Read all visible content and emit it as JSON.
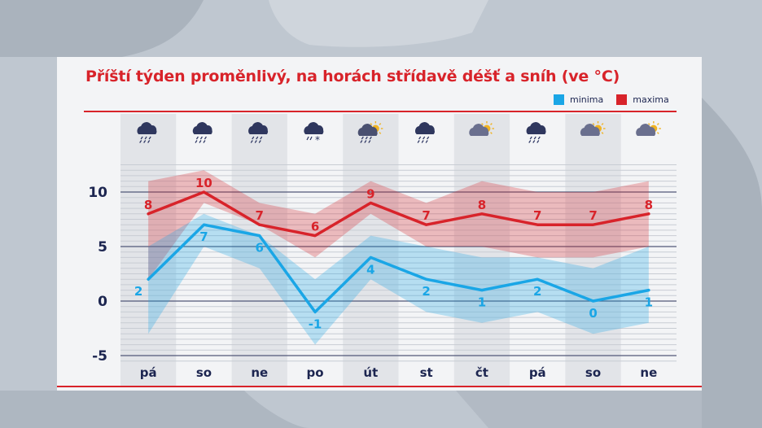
{
  "title": "Příští týden proměnlivý, na horách střídavě déšť a sníh (ve °C)",
  "legend": {
    "min_label": "minima",
    "max_label": "maxima"
  },
  "colors": {
    "min": "#1aa6e6",
    "max": "#d8232a",
    "text": "#1c2550",
    "title": "#d8232a"
  },
  "chart_data": {
    "type": "line",
    "title": "Příští týden proměnlivý, na horách střídavě déšť a sníh (ve °C)",
    "categories": [
      "pá",
      "so",
      "ne",
      "po",
      "út",
      "st",
      "čt",
      "pá",
      "so",
      "ne"
    ],
    "icons": [
      "rain-cloud-icon",
      "rain-cloud-icon",
      "rain-cloud-icon",
      "sleet-cloud-icon",
      "sun-rain-cloud-icon",
      "rain-cloud-icon",
      "sun-cloud-icon",
      "rain-cloud-icon",
      "sun-cloud-icon",
      "sun-cloud-icon"
    ],
    "yticks": [
      10,
      5,
      0,
      -5
    ],
    "ylim": [
      -5.5,
      12.5
    ],
    "series": [
      {
        "name": "maxima",
        "values": [
          8,
          10,
          7,
          6,
          9,
          7,
          8,
          7,
          7,
          8
        ],
        "band_low": [
          2,
          9,
          7,
          4,
          8,
          5,
          5,
          4,
          4,
          5
        ],
        "band_high": [
          11,
          12,
          9,
          8,
          11,
          9,
          11,
          10,
          10,
          11
        ]
      },
      {
        "name": "minima",
        "values": [
          2,
          7,
          6,
          -1,
          4,
          2,
          1,
          2,
          0,
          1
        ],
        "band_low": [
          -3,
          5,
          3,
          -4,
          2,
          -1,
          -2,
          -1,
          -3,
          -2
        ],
        "band_high": [
          5,
          8,
          6,
          2,
          6,
          5,
          4,
          4,
          3,
          5
        ]
      }
    ],
    "grid": true
  }
}
